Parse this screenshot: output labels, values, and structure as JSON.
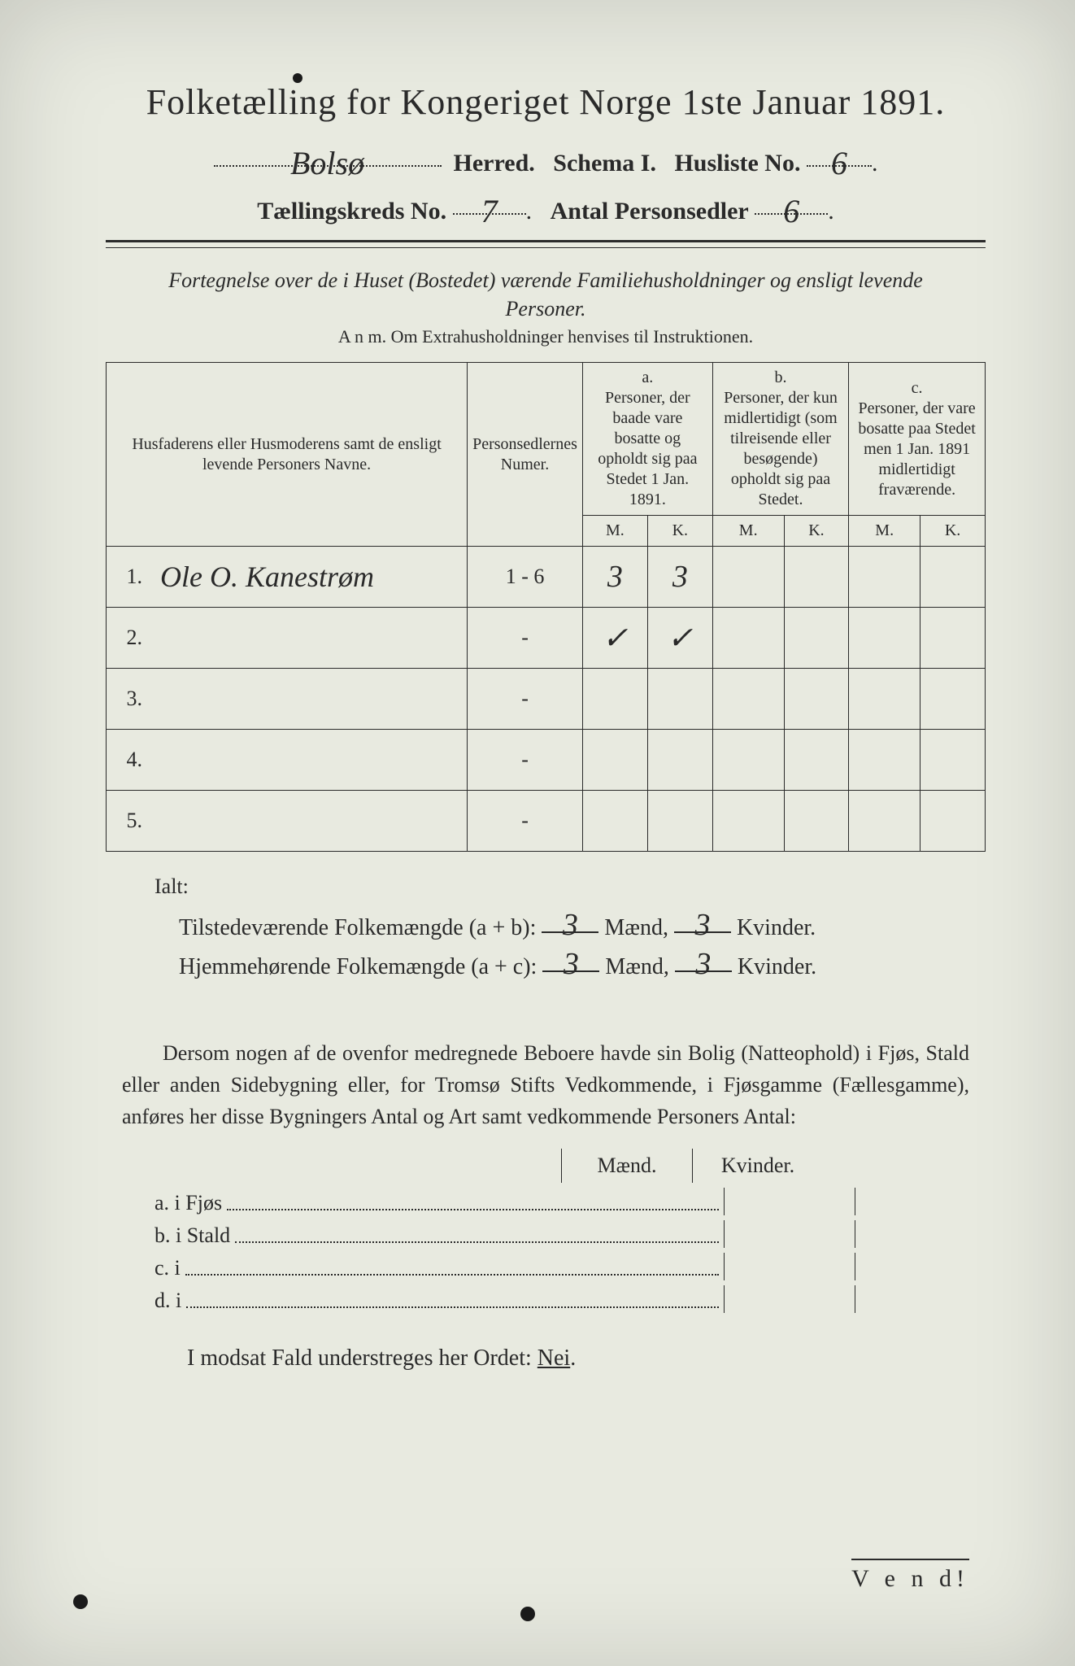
{
  "title": "Folketælling for Kongeriget Norge 1ste Januar 1891.",
  "header": {
    "herred_value": "Bolsø",
    "herred_label": "Herred.",
    "schema_label": "Schema I.",
    "husliste_label": "Husliste No.",
    "husliste_value": "6",
    "kreds_label": "Tællingskreds No.",
    "kreds_value": "7",
    "personsedler_label": "Antal Personsedler",
    "personsedler_value": "6"
  },
  "subtitle1": "Fortegnelse over de i Huset (Bostedet) værende Familiehusholdninger og ensligt levende Personer.",
  "subtitle2": "A n m.   Om Extrahusholdninger henvises til Instruktionen.",
  "columns": {
    "name": "Husfaderens eller Husmoderens samt de ensligt levende Personers Navne.",
    "person_num": "Personsedlernes Numer.",
    "a": "a.\nPersoner, der baade vare bosatte og opholdt sig paa Stedet 1 Jan. 1891.",
    "b": "b.\nPersoner, der kun midlertidigt (som tilreisende eller besøgende) opholdt sig paa Stedet.",
    "c": "c.\nPersoner, der vare bosatte paa Stedet men 1 Jan. 1891 midlertidigt fraværende.",
    "m": "M.",
    "k": "K."
  },
  "rows": [
    {
      "n": "1.",
      "name": "Ole O. Kanestrøm",
      "pn": "1 - 6",
      "am": "3",
      "ak": "3",
      "bm": "",
      "bk": "",
      "cm": "",
      "ck": ""
    },
    {
      "n": "2.",
      "name": "",
      "pn": "-",
      "am": "✓",
      "ak": "✓",
      "bm": "",
      "bk": "",
      "cm": "",
      "ck": ""
    },
    {
      "n": "3.",
      "name": "",
      "pn": "-",
      "am": "",
      "ak": "",
      "bm": "",
      "bk": "",
      "cm": "",
      "ck": ""
    },
    {
      "n": "4.",
      "name": "",
      "pn": "-",
      "am": "",
      "ak": "",
      "bm": "",
      "bk": "",
      "cm": "",
      "ck": ""
    },
    {
      "n": "5.",
      "name": "",
      "pn": "-",
      "am": "",
      "ak": "",
      "bm": "",
      "bk": "",
      "cm": "",
      "ck": ""
    }
  ],
  "ialt": "Ialt:",
  "totals": {
    "line1_label": "Tilstedeværende Folkemængde (a + b):",
    "line2_label": "Hjemmehørende Folkemængde (a + c):",
    "maend": "Mænd,",
    "kvinder": "Kvinder.",
    "v1m": "3",
    "v1k": "3",
    "v2m": "3",
    "v2k": "3"
  },
  "paragraph": "Dersom nogen af de ovenfor medregnede Beboere havde sin Bolig (Natteophold) i Fjøs, Stald eller anden Sidebygning eller, for Tromsø Stifts Vedkommende, i Fjøsgamme (Fællesgamme), anføres her disse Bygningers Antal og Art samt vedkommende Personers Antal:",
  "hab_head": {
    "maend": "Mænd.",
    "kvinder": "Kvinder."
  },
  "hab_rows": [
    {
      "label": "a.  i     Fjøs"
    },
    {
      "label": "b.  i     Stald"
    },
    {
      "label": "c.  i"
    },
    {
      "label": "d.  i"
    }
  ],
  "nei_line": "I modsat Fald understreges her Ordet: Nei.",
  "vend": "V e n d!",
  "style": {
    "paper_bg": "#e8eae0",
    "ink": "#2a2a2a",
    "title_fontsize": 44,
    "body_fontsize": 26,
    "script_font": "Brush Script MT"
  }
}
